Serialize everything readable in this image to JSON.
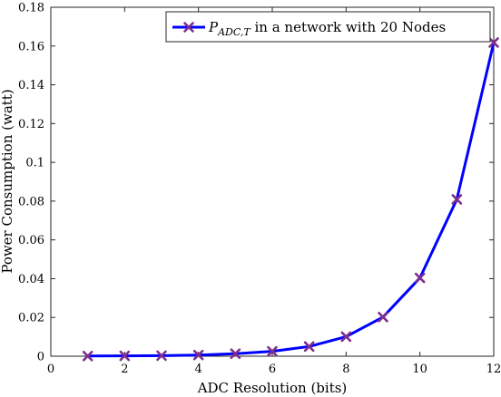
{
  "chart_data": {
    "type": "line",
    "title": "",
    "xlabel": "ADC Resolution (bits)",
    "ylabel": "Power Consumption (watt)",
    "xlim": [
      0,
      12
    ],
    "ylim": [
      0,
      0.18
    ],
    "xticks": [
      0,
      2,
      4,
      6,
      8,
      10,
      12
    ],
    "yticks": [
      0,
      0.02,
      0.04,
      0.06,
      0.08,
      0.1,
      0.12,
      0.14,
      0.16,
      0.18
    ],
    "xtick_labels": [
      "0",
      "2",
      "4",
      "6",
      "8",
      "10",
      "12"
    ],
    "ytick_labels": [
      "0",
      "0.02",
      "0.04",
      "0.06",
      "0.08",
      "0.1",
      "0.12",
      "0.14",
      "0.16",
      "0.18"
    ],
    "grid": false,
    "legend_position": "top-right",
    "series": [
      {
        "name": "P_ADC,T in a network with 20 Nodes",
        "legend_main": "P",
        "legend_sub": "ADC,T",
        "legend_rest": " in a network with 20 Nodes",
        "line_color": "#0000ff",
        "marker_color": "#7e2f8e",
        "marker": "x",
        "x": [
          1,
          2,
          3,
          4,
          5,
          6,
          7,
          8,
          9,
          10,
          11,
          12
        ],
        "y": [
          0.0001,
          0.0002,
          0.0003,
          0.0006,
          0.0013,
          0.0025,
          0.005,
          0.0101,
          0.0202,
          0.0404,
          0.0809,
          0.1618
        ]
      }
    ]
  }
}
